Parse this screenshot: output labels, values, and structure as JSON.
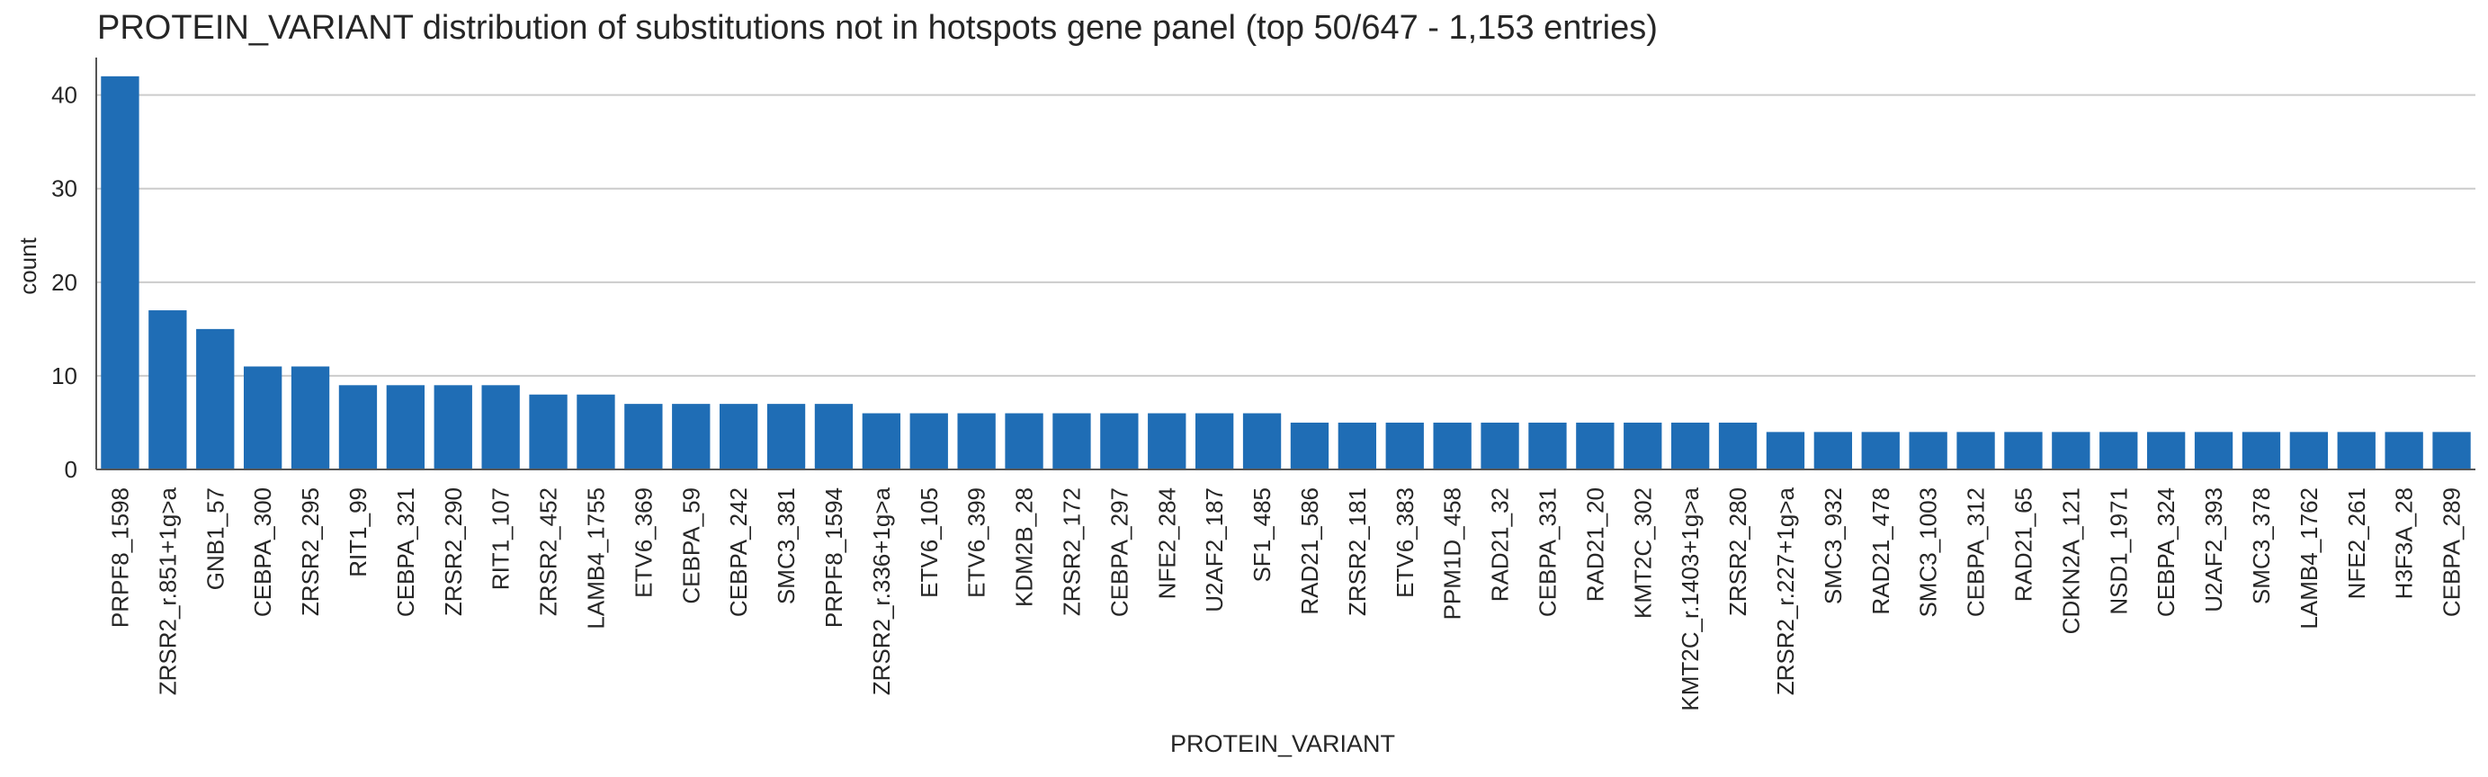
{
  "chart_data": {
    "type": "bar",
    "title": "PROTEIN_VARIANT distribution of substitutions not in hotspots gene panel (top 50/647 - 1,153 entries)",
    "xlabel": "PROTEIN_VARIANT",
    "ylabel": "count",
    "ylim": [
      0,
      44
    ],
    "yticks": [
      0,
      10,
      20,
      30,
      40
    ],
    "grid": "horizontal",
    "bar_color": "#1f6db5",
    "categories": [
      "PRPF8_1598",
      "ZRSR2_r.851+1g>a",
      "GNB1_57",
      "CEBPA_300",
      "ZRSR2_295",
      "RIT1_99",
      "CEBPA_321",
      "ZRSR2_290",
      "RIT1_107",
      "ZRSR2_452",
      "LAMB4_1755",
      "ETV6_369",
      "CEBPA_59",
      "CEBPA_242",
      "SMC3_381",
      "PRPF8_1594",
      "ZRSR2_r.336+1g>a",
      "ETV6_105",
      "ETV6_399",
      "KDM2B_28",
      "ZRSR2_172",
      "CEBPA_297",
      "NFE2_284",
      "U2AF2_187",
      "SF1_485",
      "RAD21_586",
      "ZRSR2_181",
      "ETV6_383",
      "PPM1D_458",
      "RAD21_32",
      "CEBPA_331",
      "RAD21_20",
      "KMT2C_302",
      "KMT2C_r.1403+1g>a",
      "ZRSR2_280",
      "ZRSR2_r.227+1g>a",
      "SMC3_932",
      "RAD21_478",
      "SMC3_1003",
      "CEBPA_312",
      "RAD21_65",
      "CDKN2A_121",
      "NSD1_1971",
      "CEBPA_324",
      "U2AF2_393",
      "SMC3_378",
      "LAMB4_1762",
      "NFE2_261",
      "H3F3A_28",
      "CEBPA_289"
    ],
    "values": [
      42,
      17,
      15,
      11,
      11,
      9,
      9,
      9,
      9,
      8,
      8,
      7,
      7,
      7,
      7,
      7,
      6,
      6,
      6,
      6,
      6,
      6,
      6,
      6,
      6,
      5,
      5,
      5,
      5,
      5,
      5,
      5,
      5,
      5,
      5,
      4,
      4,
      4,
      4,
      4,
      4,
      4,
      4,
      4,
      4,
      4,
      4,
      4,
      4,
      4
    ]
  }
}
